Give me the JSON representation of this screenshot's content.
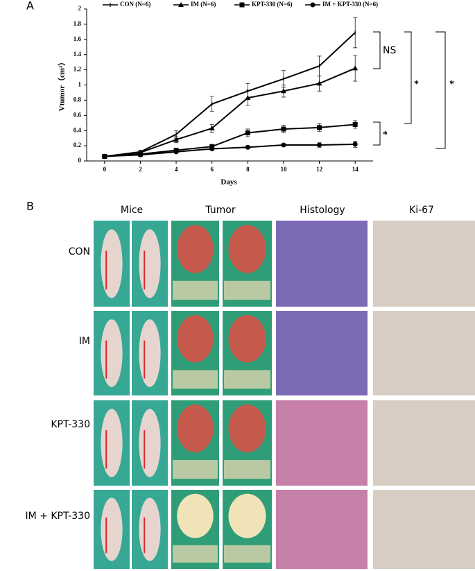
{
  "chart_data": {
    "type": "line",
    "panel_label": "A",
    "x_label": "Days",
    "y_label": "Vtumor（cm³）",
    "x": [
      0,
      2,
      4,
      6,
      8,
      10,
      12,
      14
    ],
    "xlim": [
      -1,
      15
    ],
    "xticks": [
      0,
      2,
      4,
      6,
      8,
      10,
      12,
      14
    ],
    "ylim": [
      0,
      2
    ],
    "yticks": [
      0,
      0.2,
      0.4,
      0.6,
      0.8,
      1,
      1.2,
      1.4,
      1.6,
      1.8,
      2
    ],
    "series": [
      {
        "name": "CON (N=6)",
        "marker": "plus",
        "color": "#000000",
        "values": [
          0.06,
          0.12,
          0.35,
          0.75,
          0.92,
          1.08,
          1.25,
          1.69
        ],
        "errors": [
          0.02,
          0.02,
          0.05,
          0.1,
          0.1,
          0.11,
          0.13,
          0.2
        ]
      },
      {
        "name": "IM (N=6)",
        "marker": "triangle",
        "color": "#000000",
        "values": [
          0.06,
          0.11,
          0.28,
          0.43,
          0.83,
          0.92,
          1.02,
          1.22
        ],
        "errors": [
          0.02,
          0.02,
          0.04,
          0.05,
          0.1,
          0.08,
          0.1,
          0.17
        ]
      },
      {
        "name": "KPT-330 (N=6)",
        "marker": "square",
        "color": "#000000",
        "values": [
          0.06,
          0.09,
          0.14,
          0.19,
          0.37,
          0.42,
          0.44,
          0.48
        ],
        "errors": [
          0.02,
          0.02,
          0.02,
          0.02,
          0.05,
          0.05,
          0.05,
          0.05
        ]
      },
      {
        "name": "IM + KPT-330 (N=6)",
        "marker": "circle",
        "color": "#000000",
        "values": [
          0.06,
          0.08,
          0.12,
          0.16,
          0.18,
          0.21,
          0.21,
          0.22
        ],
        "errors": [
          0.02,
          0.01,
          0.02,
          0.02,
          0.02,
          0.02,
          0.03,
          0.04
        ]
      }
    ],
    "annotations": [
      "NS",
      "*",
      "*",
      "*"
    ]
  },
  "panel_b": {
    "panel_label": "B",
    "columns": [
      "Mice",
      "Tumor",
      "Histology",
      "Ki-67"
    ],
    "rows": [
      "CON",
      "IM",
      "KPT-330",
      "IM + KPT-330"
    ]
  }
}
